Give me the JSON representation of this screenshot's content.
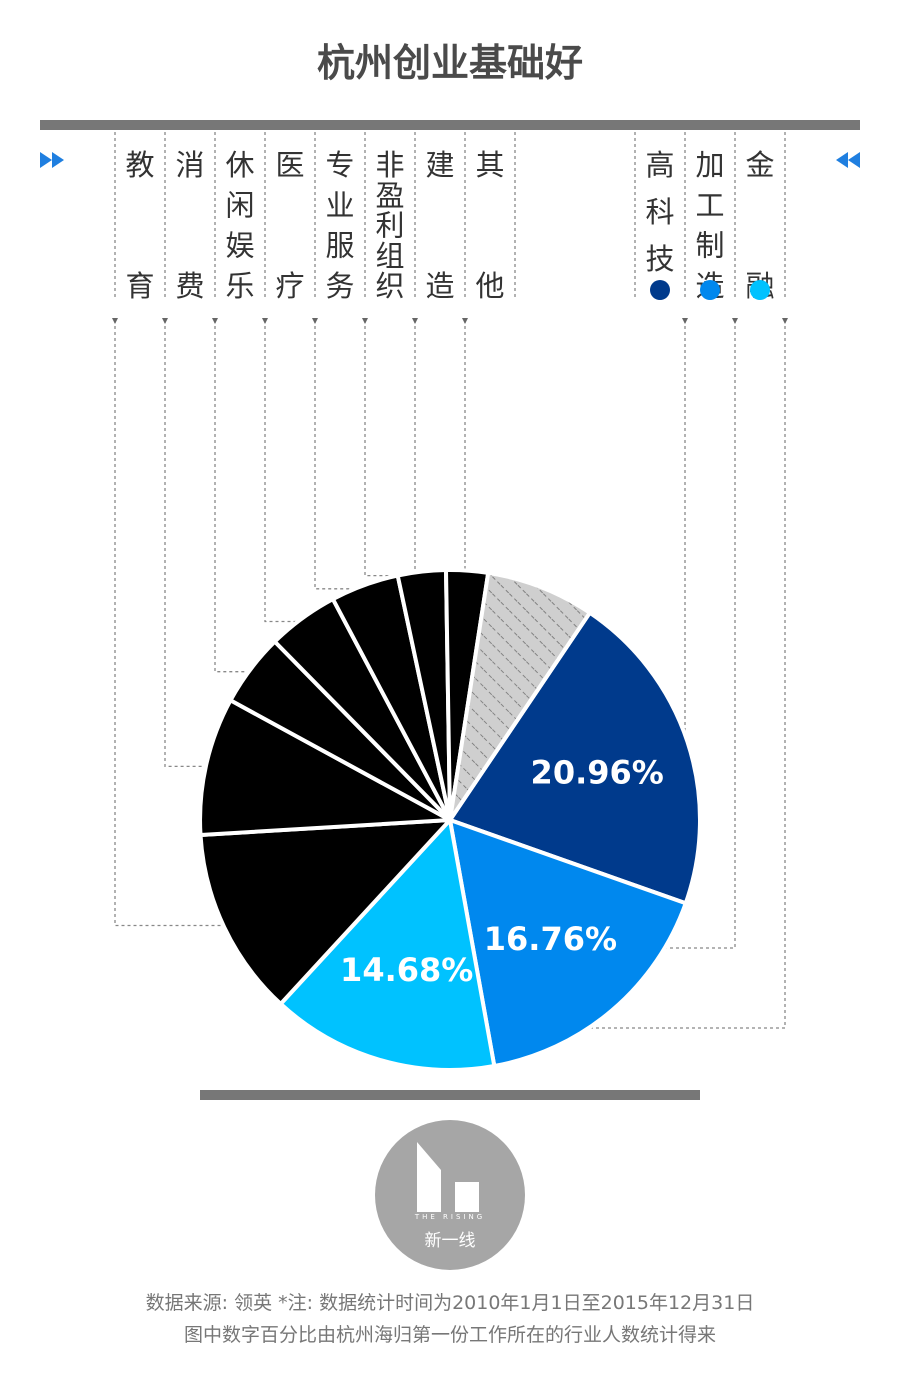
{
  "title": "杭州创业基础好",
  "chart_data": {
    "type": "pie",
    "title": "杭州创业基础好",
    "categories_left": [
      "教育",
      "消费",
      "休闲娱乐",
      "医疗",
      "专业服务",
      "非盈利组织",
      "建造",
      "其他"
    ],
    "categories_right": [
      "高科技",
      "加工制造",
      "金融"
    ],
    "slices": [
      {
        "name": "高科技",
        "value": 20.96,
        "color": "#003a8c",
        "label": "20.96%"
      },
      {
        "name": "加工制造",
        "value": 16.76,
        "color": "#0088ee",
        "label": "16.76%"
      },
      {
        "name": "金融",
        "value": 14.68,
        "color": "#00c2ff",
        "label": "14.68%"
      },
      {
        "name": "教育",
        "value": 12.2,
        "color": "#000000",
        "label": ""
      },
      {
        "name": "消费",
        "value": 8.9,
        "color": "#000000",
        "label": ""
      },
      {
        "name": "休闲娱乐",
        "value": 4.7,
        "color": "#000000",
        "label": ""
      },
      {
        "name": "医疗",
        "value": 4.6,
        "color": "#000000",
        "label": ""
      },
      {
        "name": "专业服务",
        "value": 4.4,
        "color": "#000000",
        "label": ""
      },
      {
        "name": "非盈利组织",
        "value": 3.1,
        "color": "#000000",
        "label": ""
      },
      {
        "name": "建造",
        "value": 2.7,
        "color": "#000000",
        "label": ""
      },
      {
        "name": "其他",
        "value": 7.0,
        "color": "#cccccc",
        "label": "",
        "pattern": "hatched"
      }
    ],
    "legend_marker_colors": [
      "#003a8c",
      "#0088ee",
      "#00c2ff"
    ]
  },
  "logo": {
    "name": "新一线",
    "subtitle": "THE RISING"
  },
  "footnote": {
    "line1": "数据来源: 领英 *注: 数据统计时间为2010年1月1日至2015年12月31日",
    "line2": "图中数字百分比由杭州海归第一份工作所在的行业人数统计得来"
  },
  "icons": {
    "left": "double-chevron-right-icon",
    "right": "double-chevron-left-icon"
  }
}
